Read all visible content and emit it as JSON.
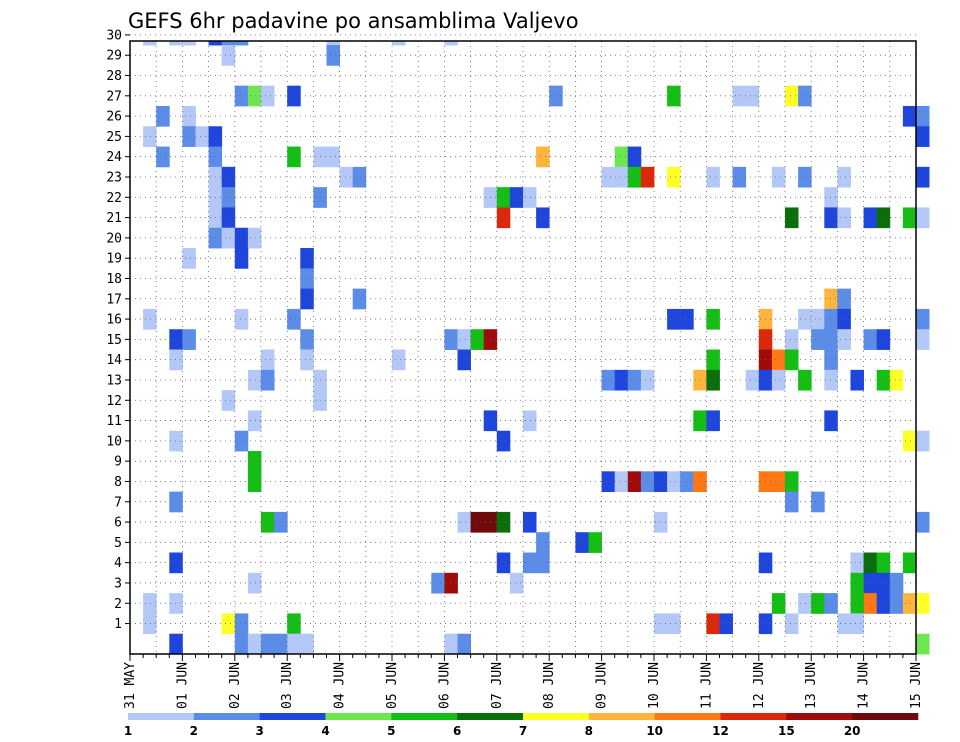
{
  "chart_data": {
    "type": "heatmap",
    "title": "GEFS 6hr padavine po ansamblima Valjevo",
    "xlabel": "",
    "ylabel": "",
    "x_ticks": [
      "31 MAY",
      "01 JUN",
      "02 JUN",
      "03 JUN",
      "04 JUN",
      "05 JUN",
      "06 JUN",
      "07 JUN",
      "08 JUN",
      "09 JUN",
      "10 JUN",
      "11 JUN",
      "12 JUN",
      "13 JUN",
      "14 JUN",
      "15 JUN"
    ],
    "y_ticks": [
      "1",
      "2",
      "3",
      "4",
      "5",
      "6",
      "7",
      "8",
      "9",
      "10",
      "11",
      "12",
      "13",
      "14",
      "15",
      "16",
      "17",
      "18",
      "19",
      "20",
      "21",
      "22",
      "23",
      "24",
      "25",
      "26",
      "27",
      "28",
      "29",
      "30"
    ],
    "x_range_days": [
      0,
      15
    ],
    "y_range": [
      0,
      30
    ],
    "grid": true,
    "colorbar": {
      "labels": [
        "1",
        "2",
        "3",
        "4",
        "5",
        "6",
        "7",
        "8",
        "10",
        "12",
        "15",
        "20"
      ],
      "colors": [
        "#b4c8f8",
        "#5a8ce8",
        "#1e46dc",
        "#6ee650",
        "#14be14",
        "#0a6e0a",
        "#ffff28",
        "#ffb43c",
        "#ff7814",
        "#dc280a",
        "#a00a0a",
        "#6e0a0a"
      ]
    },
    "cells": [
      [
        0.25,
        30,
        1
      ],
      [
        0.75,
        30,
        1
      ],
      [
        1.0,
        30,
        1
      ],
      [
        1.5,
        30,
        3
      ],
      [
        1.75,
        30,
        2
      ],
      [
        2.0,
        30,
        2
      ],
      [
        3.75,
        30,
        1
      ],
      [
        5.0,
        30,
        1
      ],
      [
        6.0,
        30,
        1
      ],
      [
        1.75,
        29,
        1
      ],
      [
        3.75,
        29,
        2
      ],
      [
        2.0,
        27,
        2
      ],
      [
        2.25,
        27,
        4
      ],
      [
        2.5,
        27,
        1
      ],
      [
        3.0,
        27,
        3
      ],
      [
        8.0,
        27,
        2
      ],
      [
        10.25,
        27,
        5
      ],
      [
        11.5,
        27,
        1
      ],
      [
        11.75,
        27,
        1
      ],
      [
        12.5,
        27,
        7
      ],
      [
        12.75,
        27,
        2
      ],
      [
        0.5,
        26,
        2
      ],
      [
        1.0,
        26,
        1
      ],
      [
        14.75,
        26,
        3
      ],
      [
        15.0,
        26,
        2
      ],
      [
        0.25,
        25,
        1
      ],
      [
        1.0,
        25,
        2
      ],
      [
        1.25,
        25,
        1
      ],
      [
        1.5,
        25,
        3
      ],
      [
        15.0,
        25,
        3
      ],
      [
        0.5,
        24,
        2
      ],
      [
        1.5,
        24,
        2
      ],
      [
        3.0,
        24,
        5
      ],
      [
        3.5,
        24,
        1
      ],
      [
        3.75,
        24,
        1
      ],
      [
        7.75,
        24,
        8
      ],
      [
        9.25,
        24,
        4
      ],
      [
        9.5,
        24,
        3
      ],
      [
        1.5,
        23,
        1
      ],
      [
        1.75,
        23,
        3
      ],
      [
        4.0,
        23,
        1
      ],
      [
        4.25,
        23,
        2
      ],
      [
        9.0,
        23,
        1
      ],
      [
        9.25,
        23,
        1
      ],
      [
        9.5,
        23,
        5
      ],
      [
        9.75,
        23,
        10
      ],
      [
        10.25,
        23,
        7
      ],
      [
        11.0,
        23,
        1
      ],
      [
        11.5,
        23,
        2
      ],
      [
        12.25,
        23,
        1
      ],
      [
        12.75,
        23,
        2
      ],
      [
        13.5,
        23,
        1
      ],
      [
        15.0,
        23,
        3
      ],
      [
        1.5,
        22,
        1
      ],
      [
        1.75,
        22,
        2
      ],
      [
        3.5,
        22,
        2
      ],
      [
        6.75,
        22,
        1
      ],
      [
        7.0,
        22,
        5
      ],
      [
        7.25,
        22,
        3
      ],
      [
        7.5,
        22,
        1
      ],
      [
        13.25,
        22,
        1
      ],
      [
        1.5,
        21,
        1
      ],
      [
        1.75,
        21,
        3
      ],
      [
        7.0,
        21,
        10
      ],
      [
        7.75,
        21,
        3
      ],
      [
        12.5,
        21,
        6
      ],
      [
        13.25,
        21,
        3
      ],
      [
        13.5,
        21,
        1
      ],
      [
        14.0,
        21,
        3
      ],
      [
        14.25,
        21,
        6
      ],
      [
        14.75,
        21,
        5
      ],
      [
        15.0,
        21,
        1
      ],
      [
        1.5,
        20,
        2
      ],
      [
        1.75,
        20,
        1
      ],
      [
        2.0,
        20,
        3
      ],
      [
        2.25,
        20,
        1
      ],
      [
        1.0,
        19,
        1
      ],
      [
        2.0,
        19,
        3
      ],
      [
        3.25,
        19,
        3
      ],
      [
        3.25,
        18,
        2
      ],
      [
        3.25,
        17,
        3
      ],
      [
        4.25,
        17,
        2
      ],
      [
        13.25,
        17,
        8
      ],
      [
        13.5,
        17,
        2
      ],
      [
        0.25,
        16,
        1
      ],
      [
        2.0,
        16,
        1
      ],
      [
        3.0,
        16,
        2
      ],
      [
        10.25,
        16,
        3
      ],
      [
        10.5,
        16,
        3
      ],
      [
        11.0,
        16,
        5
      ],
      [
        12.0,
        16,
        8
      ],
      [
        12.75,
        16,
        1
      ],
      [
        13.0,
        16,
        1
      ],
      [
        13.25,
        16,
        2
      ],
      [
        13.5,
        16,
        3
      ],
      [
        15.0,
        16,
        2
      ],
      [
        0.75,
        15,
        3
      ],
      [
        1.0,
        15,
        2
      ],
      [
        3.25,
        15,
        2
      ],
      [
        6.0,
        15,
        2
      ],
      [
        6.25,
        15,
        1
      ],
      [
        6.5,
        15,
        5
      ],
      [
        6.75,
        15,
        11
      ],
      [
        12.0,
        15,
        10
      ],
      [
        12.5,
        15,
        1
      ],
      [
        13.0,
        15,
        2
      ],
      [
        13.25,
        15,
        2
      ],
      [
        13.5,
        15,
        1
      ],
      [
        14.0,
        15,
        2
      ],
      [
        14.25,
        15,
        3
      ],
      [
        15.0,
        15,
        1
      ],
      [
        0.75,
        14,
        1
      ],
      [
        2.5,
        14,
        1
      ],
      [
        3.25,
        14,
        1
      ],
      [
        5.0,
        14,
        1
      ],
      [
        6.25,
        14,
        3
      ],
      [
        11.0,
        14,
        5
      ],
      [
        12.0,
        14,
        11
      ],
      [
        12.25,
        14,
        9
      ],
      [
        12.5,
        14,
        5
      ],
      [
        13.25,
        14,
        2
      ],
      [
        2.25,
        13,
        1
      ],
      [
        2.5,
        13,
        2
      ],
      [
        3.5,
        13,
        1
      ],
      [
        9.0,
        13,
        2
      ],
      [
        9.25,
        13,
        3
      ],
      [
        9.5,
        13,
        2
      ],
      [
        9.75,
        13,
        1
      ],
      [
        10.75,
        13,
        8
      ],
      [
        11.0,
        13,
        6
      ],
      [
        11.75,
        13,
        1
      ],
      [
        12.0,
        13,
        3
      ],
      [
        12.25,
        13,
        1
      ],
      [
        12.75,
        13,
        5
      ],
      [
        13.25,
        13,
        1
      ],
      [
        13.75,
        13,
        3
      ],
      [
        14.25,
        13,
        5
      ],
      [
        14.5,
        13,
        7
      ],
      [
        1.75,
        12,
        1
      ],
      [
        3.5,
        12,
        1
      ],
      [
        2.25,
        11,
        1
      ],
      [
        6.75,
        11,
        3
      ],
      [
        7.5,
        11,
        1
      ],
      [
        10.75,
        11,
        5
      ],
      [
        11.0,
        11,
        3
      ],
      [
        13.25,
        11,
        3
      ],
      [
        0.75,
        10,
        1
      ],
      [
        2.0,
        10,
        2
      ],
      [
        7.0,
        10,
        3
      ],
      [
        14.75,
        10,
        7
      ],
      [
        15.0,
        10,
        1
      ],
      [
        2.25,
        9,
        5
      ],
      [
        2.25,
        8,
        5
      ],
      [
        9.0,
        8,
        3
      ],
      [
        9.25,
        8,
        1
      ],
      [
        9.5,
        8,
        11
      ],
      [
        9.75,
        8,
        2
      ],
      [
        10.0,
        8,
        3
      ],
      [
        10.25,
        8,
        1
      ],
      [
        10.5,
        8,
        2
      ],
      [
        10.75,
        8,
        9
      ],
      [
        12.0,
        8,
        9
      ],
      [
        12.25,
        8,
        9
      ],
      [
        12.5,
        8,
        5
      ],
      [
        0.75,
        7,
        2
      ],
      [
        12.5,
        7,
        2
      ],
      [
        13.0,
        7,
        2
      ],
      [
        2.5,
        6,
        5
      ],
      [
        2.75,
        6,
        2
      ],
      [
        6.25,
        6,
        1
      ],
      [
        6.5,
        6,
        12
      ],
      [
        6.75,
        6,
        12
      ],
      [
        7.0,
        6,
        6
      ],
      [
        7.5,
        6,
        3
      ],
      [
        10.0,
        6,
        1
      ],
      [
        15.0,
        6,
        2
      ],
      [
        7.75,
        5,
        2
      ],
      [
        8.5,
        5,
        3
      ],
      [
        8.75,
        5,
        5
      ],
      [
        0.75,
        4,
        3
      ],
      [
        7.0,
        4,
        3
      ],
      [
        7.5,
        4,
        2
      ],
      [
        7.75,
        4,
        2
      ],
      [
        12.0,
        4,
        3
      ],
      [
        13.75,
        4,
        1
      ],
      [
        14.0,
        4,
        6
      ],
      [
        14.25,
        4,
        5
      ],
      [
        14.75,
        4,
        5
      ],
      [
        2.25,
        3,
        1
      ],
      [
        5.75,
        3,
        2
      ],
      [
        6.0,
        3,
        11
      ],
      [
        7.25,
        3,
        1
      ],
      [
        13.75,
        3,
        5
      ],
      [
        14.0,
        3,
        3
      ],
      [
        14.25,
        3,
        3
      ],
      [
        14.5,
        3,
        2
      ],
      [
        0.25,
        2,
        1
      ],
      [
        0.75,
        2,
        1
      ],
      [
        12.25,
        2,
        5
      ],
      [
        12.75,
        2,
        1
      ],
      [
        13.0,
        2,
        5
      ],
      [
        13.25,
        2,
        2
      ],
      [
        13.75,
        2,
        5
      ],
      [
        14.0,
        2,
        9
      ],
      [
        14.25,
        2,
        3
      ],
      [
        14.5,
        2,
        2
      ],
      [
        14.75,
        2,
        8
      ],
      [
        15.0,
        2,
        7
      ],
      [
        0.25,
        1,
        1
      ],
      [
        1.75,
        1,
        7
      ],
      [
        2.0,
        1,
        2
      ],
      [
        3.0,
        1,
        5
      ],
      [
        10.0,
        1,
        1
      ],
      [
        10.25,
        1,
        1
      ],
      [
        11.0,
        1,
        10
      ],
      [
        11.25,
        1,
        3
      ],
      [
        12.0,
        1,
        3
      ],
      [
        12.5,
        1,
        1
      ],
      [
        13.5,
        1,
        1
      ],
      [
        13.75,
        1,
        1
      ],
      [
        0.75,
        0,
        3
      ],
      [
        2.0,
        0,
        2
      ],
      [
        2.25,
        0,
        1
      ],
      [
        2.5,
        0,
        2
      ],
      [
        2.75,
        0,
        2
      ],
      [
        3.0,
        0,
        1
      ],
      [
        3.25,
        0,
        1
      ],
      [
        6.0,
        0,
        1
      ],
      [
        6.25,
        0,
        2
      ],
      [
        15.0,
        0,
        4
      ]
    ]
  }
}
